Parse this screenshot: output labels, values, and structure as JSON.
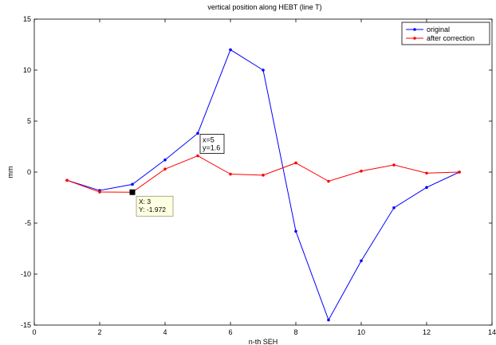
{
  "chart_data": {
    "type": "line",
    "title": "vertical position along HEBT (line T)",
    "xlabel": "n-th SEH",
    "ylabel": "mm",
    "xlim": [
      0,
      14
    ],
    "ylim": [
      -15,
      15
    ],
    "xticks": [
      0,
      2,
      4,
      6,
      8,
      10,
      12,
      14
    ],
    "yticks": [
      -15,
      -10,
      -5,
      0,
      5,
      10,
      15
    ],
    "grid": false,
    "legend_position": "top-right",
    "x": [
      1,
      2,
      3,
      4,
      5,
      6,
      7,
      8,
      9,
      10,
      11,
      12,
      13
    ],
    "series": [
      {
        "name": "original",
        "color": "#0000ff",
        "values": [
          -0.8,
          -1.8,
          -1.2,
          1.2,
          3.8,
          12.0,
          10.0,
          -5.8,
          -14.5,
          -8.7,
          -3.5,
          -1.5,
          0.0
        ]
      },
      {
        "name": "after correction",
        "color": "#ff0000",
        "values": [
          -0.8,
          -1.95,
          -1.972,
          0.3,
          1.6,
          -0.2,
          -0.3,
          0.9,
          -0.9,
          0.1,
          0.7,
          -0.1,
          0.0
        ]
      }
    ],
    "annotations": [
      {
        "lines": [
          "x=5",
          "y=1.6"
        ],
        "x": 5,
        "y": 1.6
      },
      {
        "lines": [
          "X: 3",
          "Y: -1.972"
        ],
        "x": 3,
        "y": -1.972,
        "type": "datatip"
      }
    ]
  }
}
